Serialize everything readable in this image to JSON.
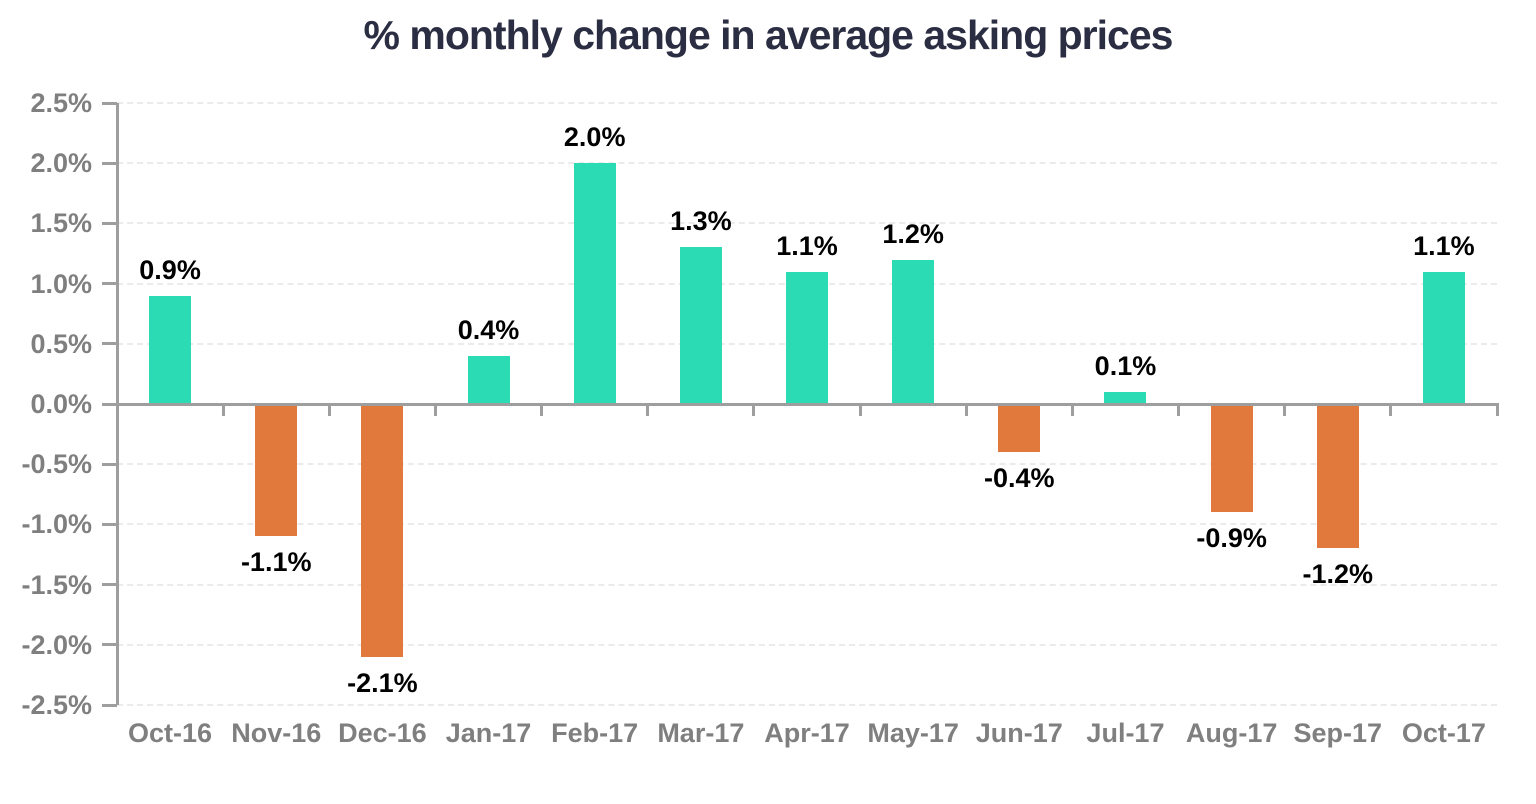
{
  "chart_data": {
    "type": "bar",
    "title": "% monthly change in average asking prices",
    "categories": [
      "Oct-16",
      "Nov-16",
      "Dec-16",
      "Jan-17",
      "Feb-17",
      "Mar-17",
      "Apr-17",
      "May-17",
      "Jun-17",
      "Jul-17",
      "Aug-17",
      "Sep-17",
      "Oct-17"
    ],
    "values": [
      0.9,
      -1.1,
      -2.1,
      0.4,
      2.0,
      1.3,
      1.1,
      1.2,
      -0.4,
      0.1,
      -0.9,
      -1.2,
      1.1
    ],
    "bar_labels": [
      "0.9%",
      "-1.1%",
      "-2.1%",
      "0.4%",
      "2.0%",
      "1.3%",
      "1.1%",
      "1.2%",
      "-0.4%",
      "0.1%",
      "-0.9%",
      "-1.2%",
      "1.1%"
    ],
    "y_tick_labels": [
      "2.5%",
      "2.0%",
      "1.5%",
      "1.0%",
      "0.5%",
      "0.0%",
      "-0.5%",
      "-1.0%",
      "-1.5%",
      "-2.0%",
      "-2.5%"
    ],
    "y_tick_values": [
      2.5,
      2.0,
      1.5,
      1.0,
      0.5,
      0.0,
      -0.5,
      -1.0,
      -1.5,
      -2.0,
      -2.5
    ],
    "ylim": [
      -2.5,
      2.5
    ],
    "xlabel": "",
    "ylabel": "",
    "legend": "none",
    "grid": "horizontal-dashed",
    "colors": {
      "positive": "#2bdbb4",
      "negative": "#e1793c",
      "axis": "#9e9e9e",
      "gridline": "#ebebeb",
      "tick_label": "#7f7f7f",
      "value_label": "#000000",
      "title": "#2b2e42"
    }
  }
}
